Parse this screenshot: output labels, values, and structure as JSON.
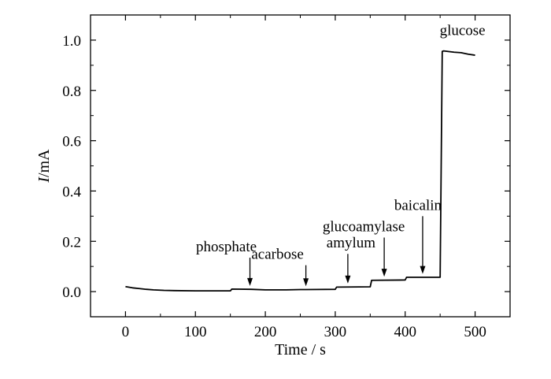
{
  "chart_data": {
    "type": "line",
    "title": "",
    "xlabel": "Time / s",
    "ylabel_italic": "I",
    "ylabel_unit": "/mA",
    "xlim": [
      -50,
      550
    ],
    "ylim": [
      -0.1,
      1.1
    ],
    "x_ticks": [
      0,
      100,
      200,
      300,
      400,
      500
    ],
    "x_tick_labels": [
      "0",
      "100",
      "200",
      "300",
      "400",
      "500"
    ],
    "y_ticks": [
      0.0,
      0.2,
      0.4,
      0.6,
      0.8,
      1.0
    ],
    "y_tick_labels": [
      "0.0",
      "0.2",
      "0.4",
      "0.6",
      "0.8",
      "1.0"
    ],
    "grid": false,
    "series": [
      {
        "x": [
          0,
          10,
          20,
          30,
          40,
          55,
          70,
          100,
          150,
          152,
          180,
          200,
          230,
          250,
          258,
          300,
          302,
          350,
          352,
          400,
          402,
          450,
          453,
          455,
          470,
          480,
          490,
          500
        ],
        "y": [
          0.02,
          0.015,
          0.012,
          0.009,
          0.007,
          0.005,
          0.004,
          0.003,
          0.003,
          0.01,
          0.009,
          0.007,
          0.007,
          0.008,
          0.008,
          0.009,
          0.018,
          0.019,
          0.045,
          0.046,
          0.057,
          0.057,
          0.955,
          0.957,
          0.952,
          0.95,
          0.944,
          0.94
        ]
      }
    ],
    "annotations": [
      {
        "label": "phosphate",
        "x": 178,
        "y": 0.01,
        "label_y": 0.16
      },
      {
        "label": "acarbose",
        "x": 258,
        "y": 0.009,
        "label_y": 0.13
      },
      {
        "label": "amylum",
        "x": 318,
        "y": 0.02,
        "label_y": 0.175
      },
      {
        "label": "glucoamylase",
        "x": 370,
        "y": 0.047,
        "label_y": 0.24
      },
      {
        "label": "baicalin",
        "x": 425,
        "y": 0.058,
        "label_y": 0.325
      },
      {
        "label": "glucose",
        "x": 455,
        "y": 0.96,
        "label_y": 1.02
      }
    ]
  }
}
